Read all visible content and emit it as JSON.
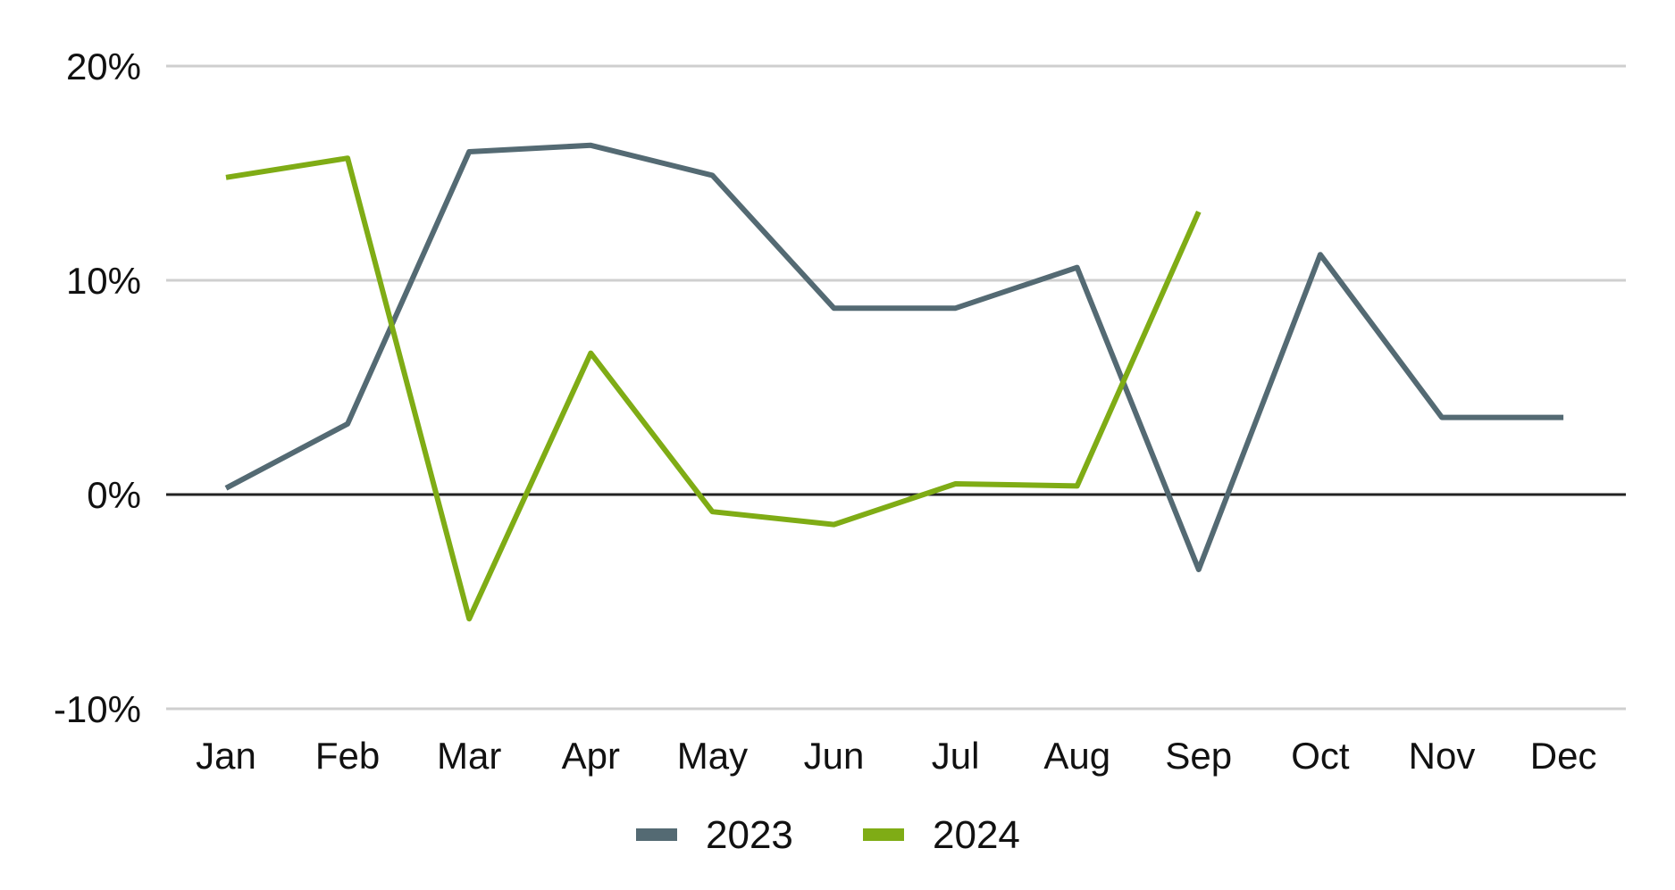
{
  "chart_data": {
    "type": "line",
    "categories": [
      "Jan",
      "Feb",
      "Mar",
      "Apr",
      "May",
      "Jun",
      "Jul",
      "Aug",
      "Sep",
      "Oct",
      "Nov",
      "Dec"
    ],
    "series": [
      {
        "name": "2023",
        "color": "#546a73",
        "values": [
          0.3,
          3.3,
          16.0,
          16.3,
          14.9,
          8.7,
          8.7,
          10.6,
          -3.5,
          11.2,
          3.6,
          3.6
        ]
      },
      {
        "name": "2024",
        "color": "#7fac15",
        "values": [
          14.8,
          15.7,
          -5.8,
          6.6,
          -0.8,
          -1.4,
          0.5,
          0.4,
          13.2,
          null,
          null,
          null
        ]
      }
    ],
    "yticks": [
      "20%",
      "10%",
      "0%",
      "-10%"
    ],
    "ytick_values": [
      20,
      10,
      0,
      -10
    ],
    "ylim": [
      -10,
      20
    ],
    "grid": true,
    "zero_line_color": "#222222",
    "grid_color": "#cfcfcf",
    "legend_position": "bottom"
  }
}
